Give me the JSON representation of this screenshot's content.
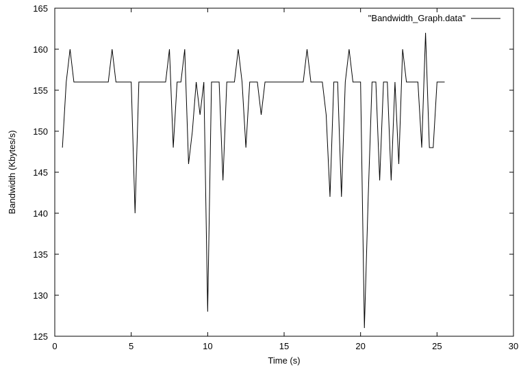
{
  "chart_data": {
    "type": "line",
    "title": "",
    "xlabel": "Time (s)",
    "ylabel": "Bandwidth (Kbytes/s)",
    "xlim": [
      0,
      30
    ],
    "ylim": [
      125,
      165
    ],
    "xticks": [
      0,
      5,
      10,
      15,
      20,
      25,
      30
    ],
    "yticks": [
      125,
      130,
      135,
      140,
      145,
      150,
      155,
      160,
      165
    ],
    "grid": false,
    "legend_position": "top-right",
    "series": [
      {
        "name": "\"Bandwidth_Graph.data\"",
        "color": "#000000",
        "x": [
          0.5,
          0.75,
          1.0,
          1.25,
          1.5,
          1.75,
          2.0,
          2.25,
          2.5,
          2.75,
          3.0,
          3.25,
          3.5,
          3.75,
          4.0,
          4.25,
          4.5,
          4.75,
          5.0,
          5.25,
          5.5,
          5.75,
          6.0,
          6.25,
          6.5,
          6.75,
          7.0,
          7.25,
          7.5,
          7.75,
          8.0,
          8.25,
          8.5,
          8.75,
          9.0,
          9.25,
          9.5,
          9.75,
          10.0,
          10.25,
          10.5,
          10.75,
          11.0,
          11.25,
          11.5,
          11.75,
          12.0,
          12.25,
          12.5,
          12.75,
          13.0,
          13.25,
          13.5,
          13.75,
          14.0,
          14.25,
          14.5,
          14.75,
          15.0,
          15.25,
          15.5,
          15.75,
          16.0,
          16.25,
          16.5,
          16.75,
          17.0,
          17.25,
          17.5,
          17.75,
          18.0,
          18.25,
          18.5,
          18.75,
          19.0,
          19.25,
          19.5,
          19.75,
          20.0,
          20.25,
          20.5,
          20.75,
          21.0,
          21.25,
          21.5,
          21.75,
          22.0,
          22.25,
          22.5,
          22.75,
          23.0,
          23.25,
          23.5,
          23.75,
          24.0,
          24.25,
          24.5,
          24.75,
          25.0,
          25.25,
          25.5
        ],
        "y": [
          148,
          156,
          160,
          156,
          156,
          156,
          156,
          156,
          156,
          156,
          156,
          156,
          156,
          160,
          156,
          156,
          156,
          156,
          156,
          140,
          156,
          156,
          156,
          156,
          156,
          156,
          156,
          156,
          160,
          148,
          156,
          156,
          160,
          146,
          150,
          156,
          152,
          156,
          128,
          156,
          156,
          156,
          144,
          156,
          156,
          156,
          160,
          156,
          148,
          156,
          156,
          156,
          152,
          156,
          156,
          156,
          156,
          156,
          156,
          156,
          156,
          156,
          156,
          156,
          160,
          156,
          156,
          156,
          156,
          152,
          142,
          156,
          156,
          142,
          156,
          160,
          156,
          156,
          156,
          126,
          142,
          156,
          156,
          144,
          156,
          156,
          144,
          156,
          146,
          160,
          156,
          156,
          156,
          156,
          148,
          162,
          148,
          148,
          156,
          156,
          156
        ]
      }
    ]
  }
}
